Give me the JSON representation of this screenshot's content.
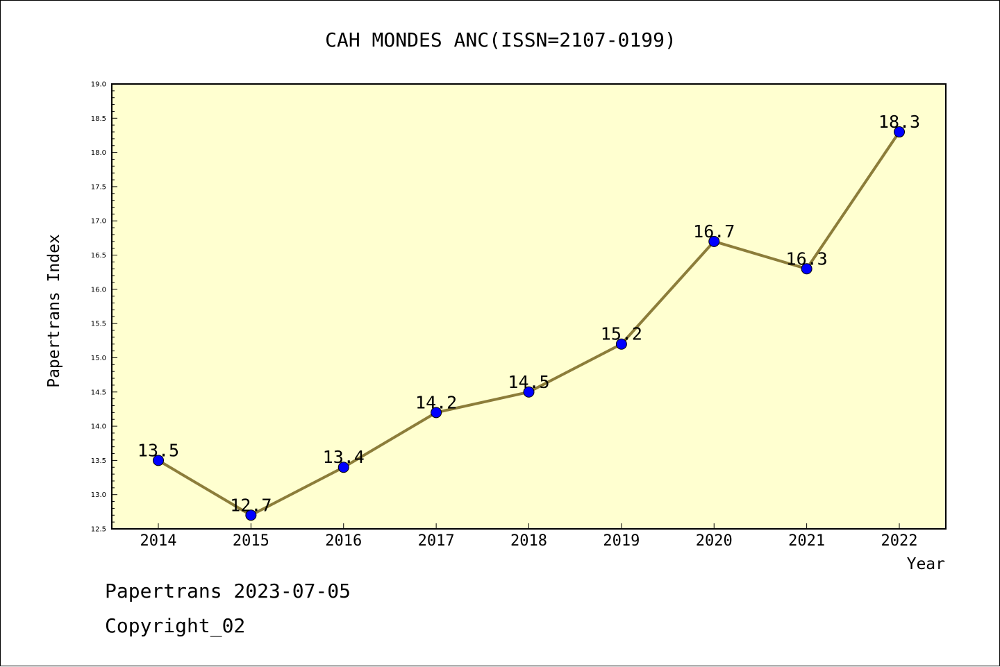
{
  "footer": {
    "line1": "Papertrans 2023-07-05",
    "line2": "Copyright_02"
  },
  "chart_data": {
    "type": "line",
    "title": "CAH MONDES ANC(ISSN=2107-0199)",
    "xlabel": "Year",
    "ylabel": "Papertrans Index",
    "categories": [
      "2014",
      "2015",
      "2016",
      "2017",
      "2018",
      "2019",
      "2020",
      "2021",
      "2022"
    ],
    "series": [
      {
        "values": [
          13.5,
          12.7,
          13.4,
          14.2,
          14.5,
          15.2,
          16.7,
          16.3,
          18.3
        ],
        "data_labels": [
          "13.5",
          "12.7",
          "13.4",
          "14.2",
          "14.5",
          "15.2",
          "16.7",
          "16.3",
          "18.3"
        ],
        "line_color": "#8c7d3a",
        "marker_color": "#0000ff"
      }
    ],
    "ylim": [
      12.5,
      19.0
    ],
    "y_tick_labels": [
      "12.5",
      "13.0",
      "13.5",
      "14.0",
      "14.5",
      "15.0",
      "15.5",
      "16.0",
      "16.5",
      "17.0",
      "17.5",
      "18.0",
      "18.5",
      "19.0"
    ],
    "plot_background": "#ffffd0",
    "grid": false,
    "legend": "none"
  }
}
